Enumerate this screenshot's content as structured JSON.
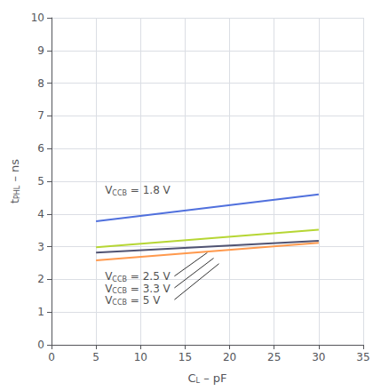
{
  "chart_data": {
    "type": "line",
    "x": [
      5,
      30
    ],
    "series": [
      {
        "values": [
          3.78,
          4.6
        ]
      },
      {
        "values": [
          2.98,
          3.52
        ]
      },
      {
        "values": [
          2.82,
          3.18
        ]
      },
      {
        "values": [
          2.58,
          3.12
        ]
      }
    ],
    "xlabel": {
      "text": "CL – pF",
      "sub": "L"
    },
    "ylabel": {
      "text": "tPHL – ns",
      "sub": "PHL"
    },
    "annotations": [
      {
        "text": "VCCB = 1.8 V",
        "sub": "CCB",
        "x": 6.0,
        "y": 4.72
      },
      {
        "text": "VCCB = 2.5 V",
        "sub": "CCB",
        "x": 6.0,
        "y": 2.08
      },
      {
        "text": "VCCB = 3.3 V",
        "sub": "CCB",
        "x": 6.0,
        "y": 1.72
      },
      {
        "text": "VCCB = 5 V",
        "sub": "CCB",
        "x": 6.0,
        "y": 1.36
      }
    ],
    "pointers": [
      {
        "x": [
          13.8,
          17.5
        ],
        "y": [
          2.1,
          2.82
        ],
        "color": "#333333"
      },
      {
        "x": [
          13.8,
          18.2
        ],
        "y": [
          1.74,
          2.65
        ],
        "color": "#333333"
      },
      {
        "x": [
          13.8,
          18.8
        ],
        "y": [
          1.38,
          2.48
        ],
        "color": "#333333"
      }
    ],
    "xlim": [
      0,
      35
    ],
    "ylim": [
      0,
      10
    ],
    "xticks": [
      0,
      5,
      10,
      15,
      20,
      25,
      30,
      35
    ],
    "yticks": [
      0,
      1,
      2,
      3,
      4,
      5,
      6,
      7,
      8,
      9,
      10
    ],
    "grid": true
  }
}
